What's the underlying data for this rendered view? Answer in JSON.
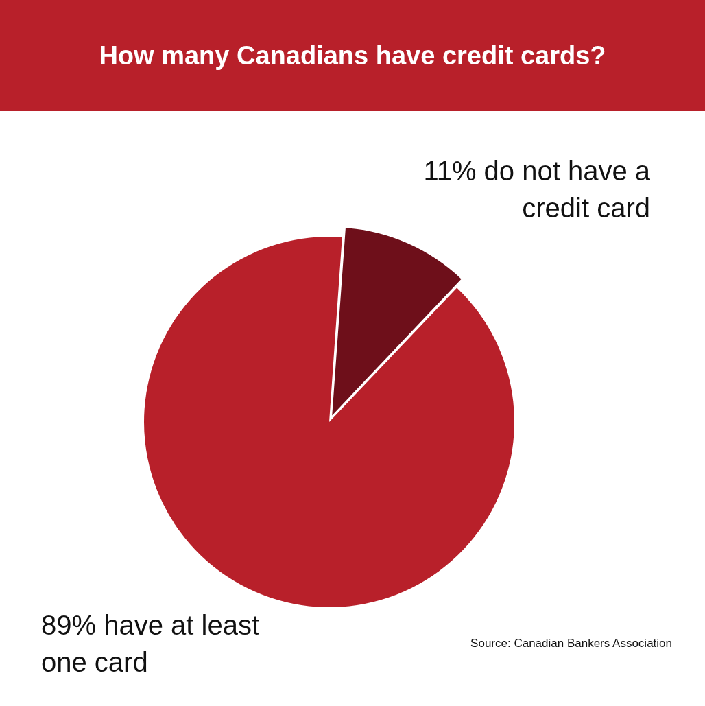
{
  "chart_data": {
    "type": "pie",
    "title": "How many Canadians have credit cards?",
    "categories": [
      "do not have a credit card",
      "have at least one card"
    ],
    "values": [
      11,
      89
    ],
    "value_labels": [
      "11%",
      "89%"
    ],
    "colors": [
      "#6e0f1a",
      "#b8202a"
    ],
    "legend": false,
    "annotations": [
      "Source: Canadian Bankers Association"
    ]
  }
}
